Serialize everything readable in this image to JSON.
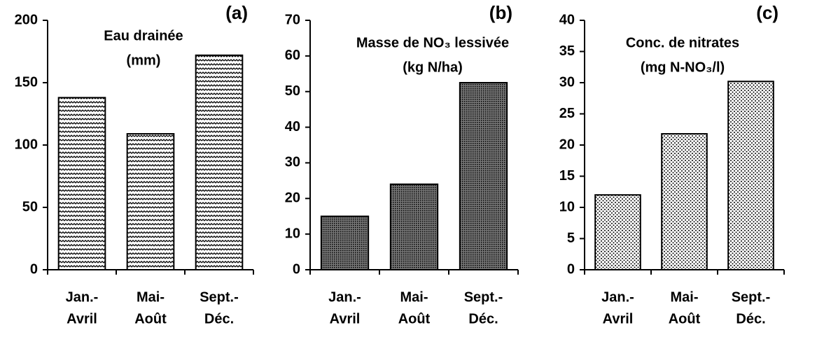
{
  "chart_data": [
    {
      "type": "bar",
      "label": "(a)",
      "title": "Eau drainée",
      "subtitle": "(mm)",
      "categories": [
        [
          "Jan.-",
          "Avril"
        ],
        [
          "Mai-",
          "Août"
        ],
        [
          "Sept.-",
          "Déc."
        ]
      ],
      "values": [
        138,
        109,
        172
      ],
      "pattern": "wave",
      "ylim": [
        0,
        200
      ],
      "yticks": [
        0,
        50,
        100,
        150,
        200
      ]
    },
    {
      "type": "bar",
      "label": "(b)",
      "title": "Masse de NO₃ lessivée",
      "subtitle": "(kg N/ha)",
      "categories": [
        [
          "Jan.-",
          "Avril"
        ],
        [
          "Mai-",
          "Août"
        ],
        [
          "Sept.-",
          "Déc."
        ]
      ],
      "values": [
        15,
        24,
        52.5
      ],
      "pattern": "dense-dots",
      "ylim": [
        0,
        70
      ],
      "yticks": [
        0,
        10,
        20,
        30,
        40,
        50,
        60,
        70
      ]
    },
    {
      "type": "bar",
      "label": "(c)",
      "title": "Conc. de nitrates",
      "subtitle": "(mg N-NO₃/l)",
      "categories": [
        [
          "Jan.-",
          "Avril"
        ],
        [
          "Mai-",
          "Août"
        ],
        [
          "Sept.-",
          "Déc."
        ]
      ],
      "values": [
        12,
        21.8,
        30.2
      ],
      "pattern": "dots",
      "ylim": [
        0,
        40
      ],
      "yticks": [
        0,
        5,
        10,
        15,
        20,
        25,
        30,
        35,
        40
      ]
    }
  ]
}
